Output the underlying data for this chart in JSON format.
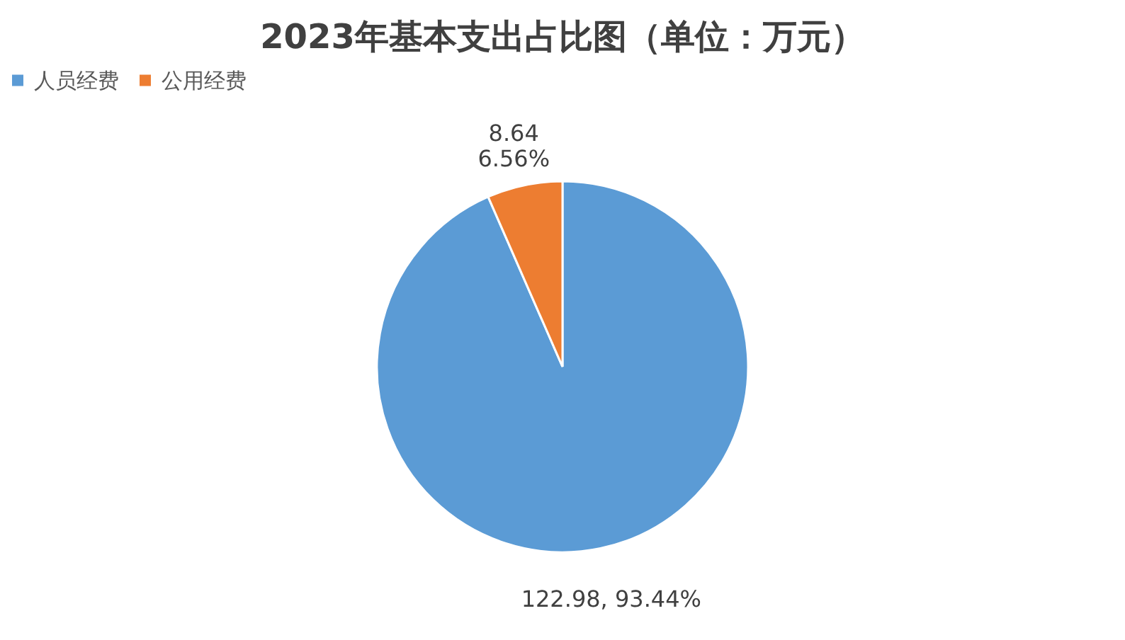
{
  "chart_data": {
    "type": "pie",
    "title": "2023年基本支出占比图（单位：万元）",
    "categories": [
      "人员经费",
      "公用经费"
    ],
    "values": [
      122.98,
      8.64
    ],
    "colors": [
      "#5b9bd5",
      "#ed7d31"
    ],
    "value_labels": [
      "122.98, 93.44%",
      "8.64\n6.56%"
    ],
    "legend": "top"
  }
}
